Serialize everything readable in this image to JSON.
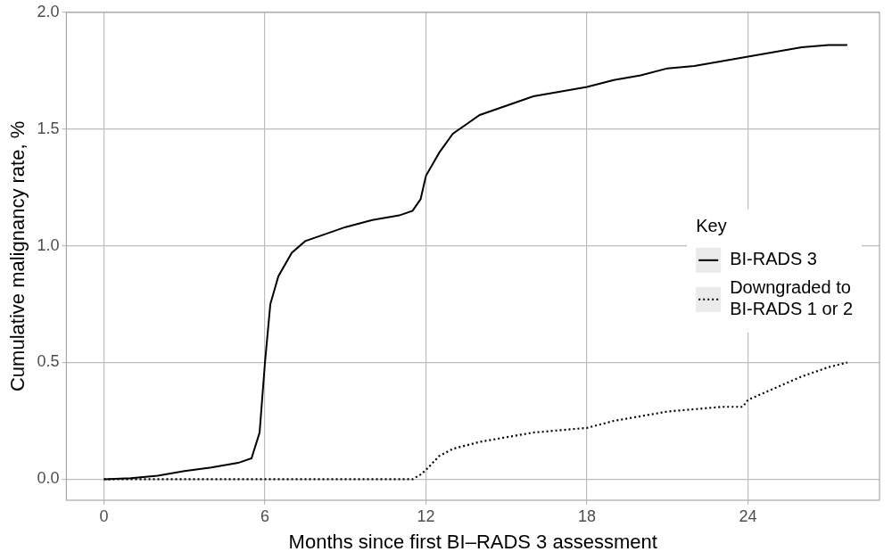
{
  "chart_data": {
    "type": "line",
    "x_label": "Months since first BI–RADS 3 assessment",
    "y_label": "Cumulative malignancy rate, %",
    "legend_title": "Key",
    "legend": "right",
    "grid": true,
    "xlim": [
      -1.4,
      28.9
    ],
    "xticks": [
      0,
      6,
      12,
      18,
      24
    ],
    "ylim": [
      -0.09,
      2.0
    ],
    "yticks": [
      {
        "value": 0,
        "label": "0.0"
      },
      0.5,
      {
        "value": 1,
        "label": "1.0"
      },
      1.5,
      {
        "value": 2,
        "label": "2.0"
      }
    ],
    "series": [
      {
        "name": "BI-RADS 3",
        "color": "#000000",
        "line_style": "solid",
        "x": [
          0,
          1,
          2,
          3,
          4,
          5,
          5.5,
          5.8,
          6,
          6.2,
          6.5,
          7,
          7.5,
          8,
          9,
          10,
          11,
          11.5,
          11.8,
          12,
          12.5,
          13,
          13.5,
          14,
          15,
          16,
          17,
          18,
          19,
          20,
          21,
          22,
          23,
          24,
          25,
          26,
          27,
          27.7
        ],
        "values": [
          0,
          0.005,
          0.015,
          0.035,
          0.05,
          0.07,
          0.09,
          0.2,
          0.5,
          0.75,
          0.87,
          0.97,
          1.02,
          1.04,
          1.08,
          1.11,
          1.13,
          1.15,
          1.2,
          1.3,
          1.4,
          1.48,
          1.52,
          1.56,
          1.6,
          1.64,
          1.66,
          1.68,
          1.71,
          1.73,
          1.76,
          1.77,
          1.79,
          1.81,
          1.83,
          1.85,
          1.86,
          1.86
        ]
      },
      {
        "name": "Downgraded to BI-RADS 1 or 2",
        "color": "#000000",
        "line_style": "dotted",
        "x": [
          0,
          11.5,
          11.8,
          12,
          12.5,
          13,
          14,
          15,
          16,
          17,
          18,
          19,
          20,
          21,
          22,
          23,
          23.8,
          24,
          25,
          26,
          27,
          27.7
        ],
        "values": [
          0,
          0,
          0.02,
          0.04,
          0.1,
          0.13,
          0.16,
          0.18,
          0.2,
          0.21,
          0.22,
          0.25,
          0.27,
          0.29,
          0.3,
          0.31,
          0.31,
          0.34,
          0.39,
          0.44,
          0.48,
          0.5
        ]
      }
    ]
  }
}
